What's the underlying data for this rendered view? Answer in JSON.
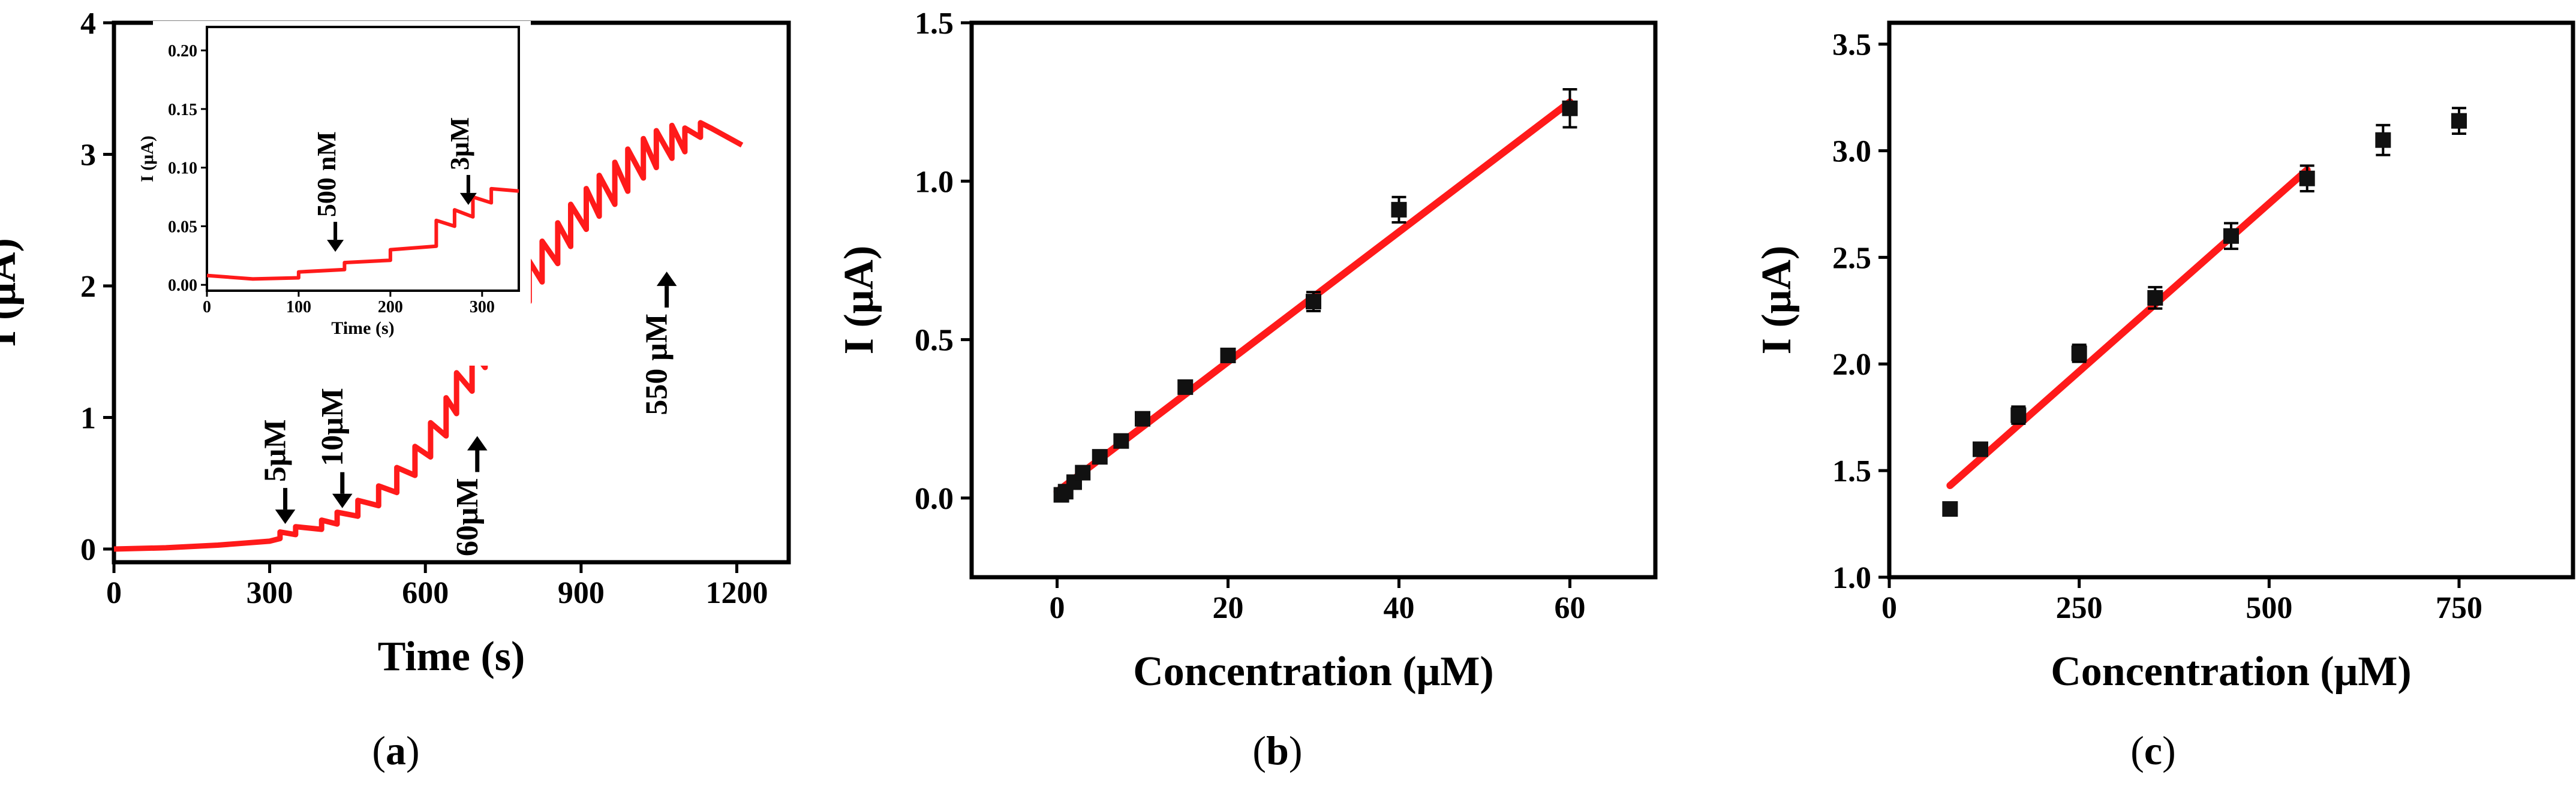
{
  "chart_data": [
    {
      "panel": "a",
      "type": "line",
      "caption": {
        "open": "(",
        "letter": "a",
        "close": ")"
      },
      "xlabel": "Time (s)",
      "ylabel": "I (μA)",
      "xlim": [
        0,
        1300
      ],
      "ylim": [
        -0.1,
        4
      ],
      "xticks": [
        "0",
        "300",
        "600",
        "900",
        "1200"
      ],
      "yticks": [
        "0",
        "1",
        "2",
        "3",
        "4"
      ],
      "line_color": "#ff1a1a",
      "series": [
        {
          "x": [
            0,
            100,
            200,
            300,
            320,
            320,
            350,
            350,
            400,
            400,
            430,
            430,
            470,
            470,
            510,
            510,
            545,
            545,
            580,
            580,
            610,
            610,
            640,
            640,
            660,
            660,
            690,
            690,
            715,
            715,
            745,
            745,
            770,
            770,
            800,
            800,
            825,
            825,
            855,
            855,
            880,
            880,
            910,
            910,
            935,
            935,
            965,
            965,
            990,
            990,
            1020,
            1020,
            1045,
            1045,
            1075,
            1075,
            1100,
            1100,
            1130,
            1130,
            1150,
            1210
          ],
          "y": [
            0.0,
            0.01,
            0.03,
            0.06,
            0.08,
            0.13,
            0.11,
            0.17,
            0.15,
            0.22,
            0.19,
            0.28,
            0.25,
            0.37,
            0.33,
            0.48,
            0.43,
            0.62,
            0.56,
            0.78,
            0.7,
            0.96,
            0.86,
            1.15,
            1.03,
            1.34,
            1.2,
            1.52,
            1.38,
            1.7,
            1.55,
            1.87,
            1.72,
            2.03,
            1.88,
            2.19,
            2.03,
            2.34,
            2.17,
            2.48,
            2.3,
            2.62,
            2.43,
            2.74,
            2.53,
            2.84,
            2.62,
            2.94,
            2.72,
            3.04,
            2.82,
            3.12,
            2.9,
            3.18,
            2.97,
            3.22,
            3.02,
            3.2,
            3.13,
            3.24,
            3.2,
            3.07
          ]
        }
      ],
      "annotations": [
        {
          "text": "5μM",
          "x": 330,
          "y": 0.1,
          "direction": "down"
        },
        {
          "text": "10μM",
          "x": 440,
          "y": 0.22,
          "direction": "down"
        },
        {
          "text": "60μM",
          "x": 700,
          "y": 0.95,
          "direction": "up"
        },
        {
          "text": "550 μM",
          "x": 1065,
          "y": 2.2,
          "direction": "up"
        }
      ],
      "inset": {
        "type": "line",
        "xlabel": "Time (s)",
        "ylabel": "I (μA)",
        "xlim": [
          0,
          340
        ],
        "ylim": [
          -0.005,
          0.22
        ],
        "xticks": [
          "0",
          "100",
          "200",
          "300"
        ],
        "yticks": [
          "0.00",
          "0.05",
          "0.10",
          "0.15",
          "0.20"
        ],
        "series": [
          {
            "x": [
              0,
              50,
              100,
              100,
              150,
              150,
              200,
              200,
              250,
              250,
              270,
              270,
              290,
              290,
              310,
              310,
              340
            ],
            "y": [
              0.008,
              0.005,
              0.006,
              0.011,
              0.013,
              0.019,
              0.021,
              0.03,
              0.033,
              0.055,
              0.05,
              0.064,
              0.058,
              0.075,
              0.07,
              0.082,
              0.08
            ]
          }
        ],
        "annotations": [
          {
            "text": "500 nM",
            "x": 140,
            "y": 0.02,
            "direction": "down"
          },
          {
            "text": "3μM",
            "x": 285,
            "y": 0.06,
            "direction": "down"
          }
        ]
      }
    },
    {
      "panel": "b",
      "type": "scatter",
      "caption": {
        "open": "(",
        "letter": "b",
        "close": ")"
      },
      "xlabel": "Concentration (μM)",
      "ylabel": "I (μA)",
      "xlim": [
        -10,
        70
      ],
      "ylim": [
        -0.25,
        1.5
      ],
      "xticks": [
        "0",
        "20",
        "40",
        "60"
      ],
      "yticks": [
        "0.0",
        "0.5",
        "1.0",
        "1.5"
      ],
      "points": {
        "x": [
          0.5,
          1,
          2,
          3,
          5,
          7.5,
          10,
          15,
          20,
          30,
          40,
          60
        ],
        "y": [
          0.01,
          0.02,
          0.05,
          0.08,
          0.13,
          0.18,
          0.25,
          0.35,
          0.45,
          0.62,
          0.91,
          1.23
        ],
        "error": [
          0.01,
          0.01,
          0.01,
          0.015,
          0.015,
          0.015,
          0.02,
          0.02,
          0.02,
          0.03,
          0.04,
          0.06
        ]
      },
      "fit": {
        "x": [
          0,
          60
        ],
        "y": [
          0.02,
          1.25
        ],
        "color": "#ff1a1a"
      }
    },
    {
      "panel": "c",
      "type": "scatter",
      "caption": {
        "open": "(",
        "letter": "c",
        "close": ")"
      },
      "xlabel": "Concentration (μM)",
      "ylabel": "I (μA)",
      "xlim": [
        0,
        900
      ],
      "ylim": [
        1.0,
        3.6
      ],
      "xticks": [
        "0",
        "250",
        "500",
        "750"
      ],
      "yticks": [
        "1.0",
        "1.5",
        "2.0",
        "2.5",
        "3.0",
        "3.5"
      ],
      "points": {
        "x": [
          80,
          120,
          170,
          250,
          350,
          450,
          550,
          650,
          750
        ],
        "y": [
          1.32,
          1.6,
          1.76,
          2.05,
          2.31,
          2.6,
          2.87,
          3.05,
          3.14
        ],
        "error": [
          0.03,
          0.03,
          0.04,
          0.04,
          0.05,
          0.06,
          0.06,
          0.07,
          0.06
        ]
      },
      "fit": {
        "x": [
          80,
          550
        ],
        "y": [
          1.43,
          2.91
        ],
        "color": "#ff1a1a"
      }
    }
  ]
}
